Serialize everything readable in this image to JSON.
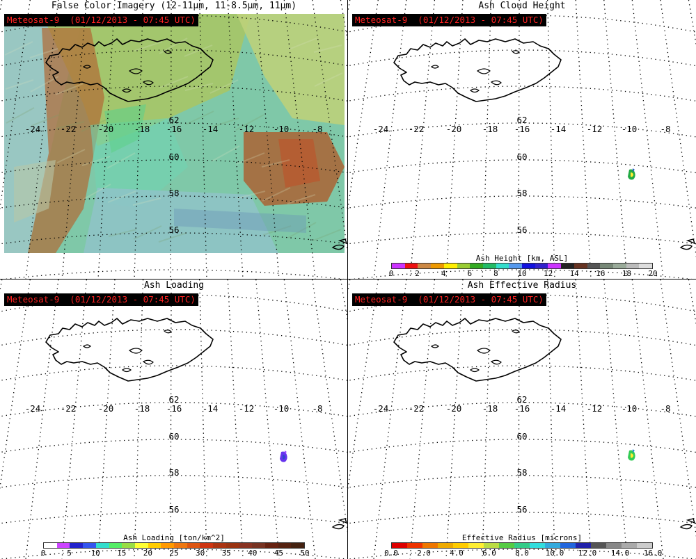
{
  "badge_text": "Meteosat-9  (01/12/2013 - 07:45 UTC)",
  "panels": [
    {
      "key": "false_color",
      "title": "False Color Imagery (12-11μm, 11-8.5μm, 11μm)"
    },
    {
      "key": "height",
      "title": "Ash Cloud Height"
    },
    {
      "key": "loading",
      "title": "Ash Loading"
    },
    {
      "key": "radius",
      "title": "Ash Effective Radius"
    }
  ],
  "lon_labels": [
    "-24",
    "-22",
    "-20",
    "-18",
    "-16",
    "-14",
    "-12",
    "-10",
    "-8"
  ],
  "lat_labels": [
    "62",
    "60",
    "58",
    "56"
  ],
  "colorbars": {
    "height": {
      "title": "Ash Height [km, ASL]",
      "ticks": [
        "0",
        "2",
        "4",
        "6",
        "8",
        "10",
        "12",
        "14",
        "16",
        "18",
        "20"
      ],
      "colors": [
        "#cc33ff",
        "#ee1111",
        "#cc8844",
        "#ee9900",
        "#ffee00",
        "#99cc33",
        "#33aa22",
        "#22bb66",
        "#33ddcc",
        "#5599ee",
        "#1111dd",
        "#3322cc",
        "#cc33ff",
        "#222222",
        "#663322",
        "#555555",
        "#778877",
        "#99aa99",
        "#bbbbbb",
        "#dddddd"
      ]
    },
    "loading": {
      "title": "Ash Loading [ton/km^2]",
      "ticks": [
        "0",
        "5",
        "10",
        "15",
        "20",
        "25",
        "30",
        "35",
        "40",
        "45",
        "50"
      ],
      "colors": [
        "#ffffff",
        "#cc44ff",
        "#2222cc",
        "#3355ee",
        "#33ddcc",
        "#55ee66",
        "#99dd44",
        "#ffff33",
        "#ffcc00",
        "#ff9900",
        "#ee7711",
        "#dd5511",
        "#cc3311",
        "#aa3311",
        "#993311",
        "#883322",
        "#773322",
        "#662211",
        "#552211",
        "#442211"
      ]
    },
    "radius": {
      "title": "Effective Radius [microns]",
      "ticks": [
        "0.0",
        "2.0",
        "4.0",
        "6.0",
        "8.0",
        "10.0",
        "12.0",
        "14.0",
        "16.0"
      ],
      "colors": [
        "#dd0000",
        "#ee3300",
        "#ee7700",
        "#eeaa00",
        "#ffcc00",
        "#ffee33",
        "#bbdd44",
        "#55cc44",
        "#33cc88",
        "#33dddd",
        "#33aadd",
        "#2266dd",
        "#2222aa",
        "#555555",
        "#888888",
        "#aaaaaa",
        "#cccccc"
      ]
    }
  }
}
